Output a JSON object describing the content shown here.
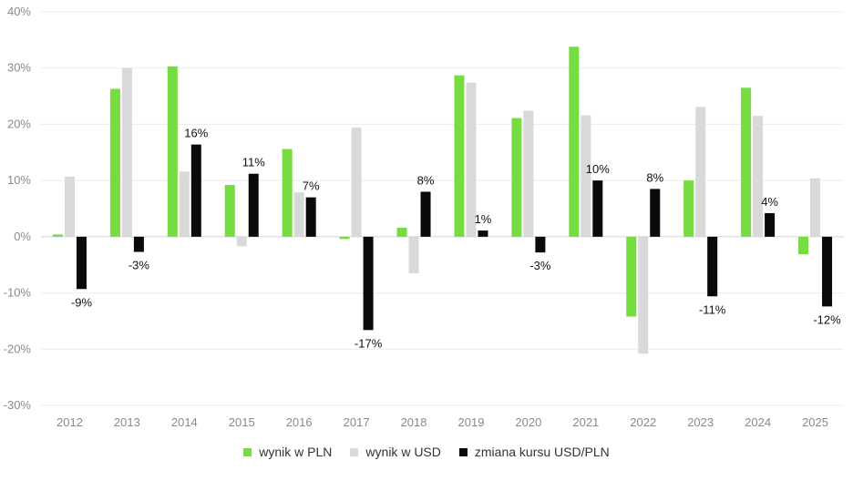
{
  "chart_data": {
    "type": "bar",
    "categories": [
      "2012",
      "2013",
      "2014",
      "2015",
      "2016",
      "2017",
      "2018",
      "2019",
      "2020",
      "2021",
      "2022",
      "2023",
      "2024",
      "2025"
    ],
    "series": [
      {
        "name": "wynik w PLN",
        "color": "#76dc3f",
        "values": [
          0.4,
          26.3,
          30.3,
          9.2,
          15.6,
          -0.4,
          1.6,
          28.7,
          21.1,
          33.8,
          -14.2,
          10.0,
          26.5,
          -3.1
        ]
      },
      {
        "name": "wynik w USD",
        "color": "#d9d9d9",
        "values": [
          10.7,
          30.0,
          11.6,
          -1.7,
          7.9,
          19.4,
          -6.5,
          27.4,
          22.4,
          21.6,
          -20.8,
          23.1,
          21.5,
          10.4
        ]
      },
      {
        "name": "zmiana kursu USD/PLN",
        "color": "#0a0a0a",
        "values": [
          -9.3,
          -2.7,
          16.4,
          11.2,
          7.0,
          -16.6,
          8.0,
          1.1,
          -2.8,
          10.0,
          8.5,
          -10.6,
          4.2,
          -12.4
        ],
        "data_labels": [
          "-9%",
          "-3%",
          "16%",
          "11%",
          "7%",
          "-17%",
          "8%",
          "1%",
          "-3%",
          "10%",
          "8%",
          "-11%",
          "4%",
          "-12%"
        ]
      }
    ],
    "ylim": [
      -30,
      40
    ],
    "yticks": [
      -30,
      -20,
      -10,
      0,
      10,
      20,
      30,
      40
    ],
    "ytick_labels": [
      "-30%",
      "-20%",
      "-10%",
      "0%",
      "10%",
      "20%",
      "30%",
      "40%"
    ],
    "grid": true,
    "legend": "bottom-center",
    "title": "",
    "xlabel": "",
    "ylabel": ""
  }
}
